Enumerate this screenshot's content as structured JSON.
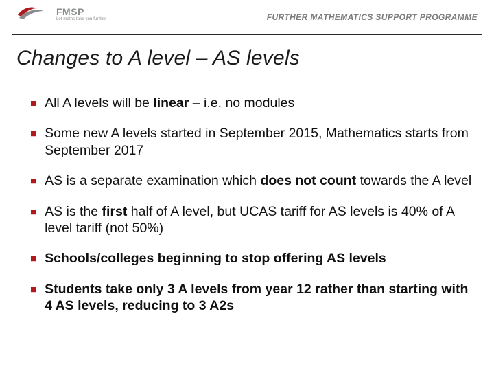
{
  "header": {
    "logo_acronym": "FMSP",
    "logo_tagline": "Let maths take you further",
    "programme_label": "FURTHER MATHEMATICS SUPPORT PROGRAMME"
  },
  "title": "Changes to A level – AS levels",
  "colors": {
    "accent": "#b0191e",
    "text": "#111111",
    "header_grey": "#7a7c7e",
    "logo_grey": "#8a8c8e",
    "rule": "#2b2b2b",
    "background": "#ffffff"
  },
  "typography": {
    "title_fontsize": 30,
    "title_style": "italic",
    "body_fontsize": 19.5,
    "header_fontsize": 12
  },
  "bullets": [
    {
      "bold_all": false,
      "segments": [
        {
          "text": "All A levels will be ",
          "bold": false
        },
        {
          "text": "linear",
          "bold": true
        },
        {
          "text": " – i.e. no modules",
          "bold": false
        }
      ]
    },
    {
      "bold_all": false,
      "segments": [
        {
          "text": "Some new A levels started in September 2015, Mathematics starts from September 2017",
          "bold": false
        }
      ]
    },
    {
      "bold_all": false,
      "segments": [
        {
          "text": "AS is a separate examination which ",
          "bold": false
        },
        {
          "text": "does not count",
          "bold": true
        },
        {
          "text": " towards the A level",
          "bold": false
        }
      ]
    },
    {
      "bold_all": false,
      "segments": [
        {
          "text": "AS is the ",
          "bold": false
        },
        {
          "text": "first",
          "bold": true
        },
        {
          "text": " half of A level, but UCAS tariff for AS levels is 40% of A level tariff (not 50%)",
          "bold": false
        }
      ]
    },
    {
      "bold_all": true,
      "segments": [
        {
          "text": "Schools/colleges beginning to stop offering AS levels",
          "bold": true
        }
      ]
    },
    {
      "bold_all": true,
      "segments": [
        {
          "text": "Students take only 3 A levels from year 12 rather than starting with 4 AS levels, reducing to 3 A2s",
          "bold": true
        }
      ]
    }
  ]
}
